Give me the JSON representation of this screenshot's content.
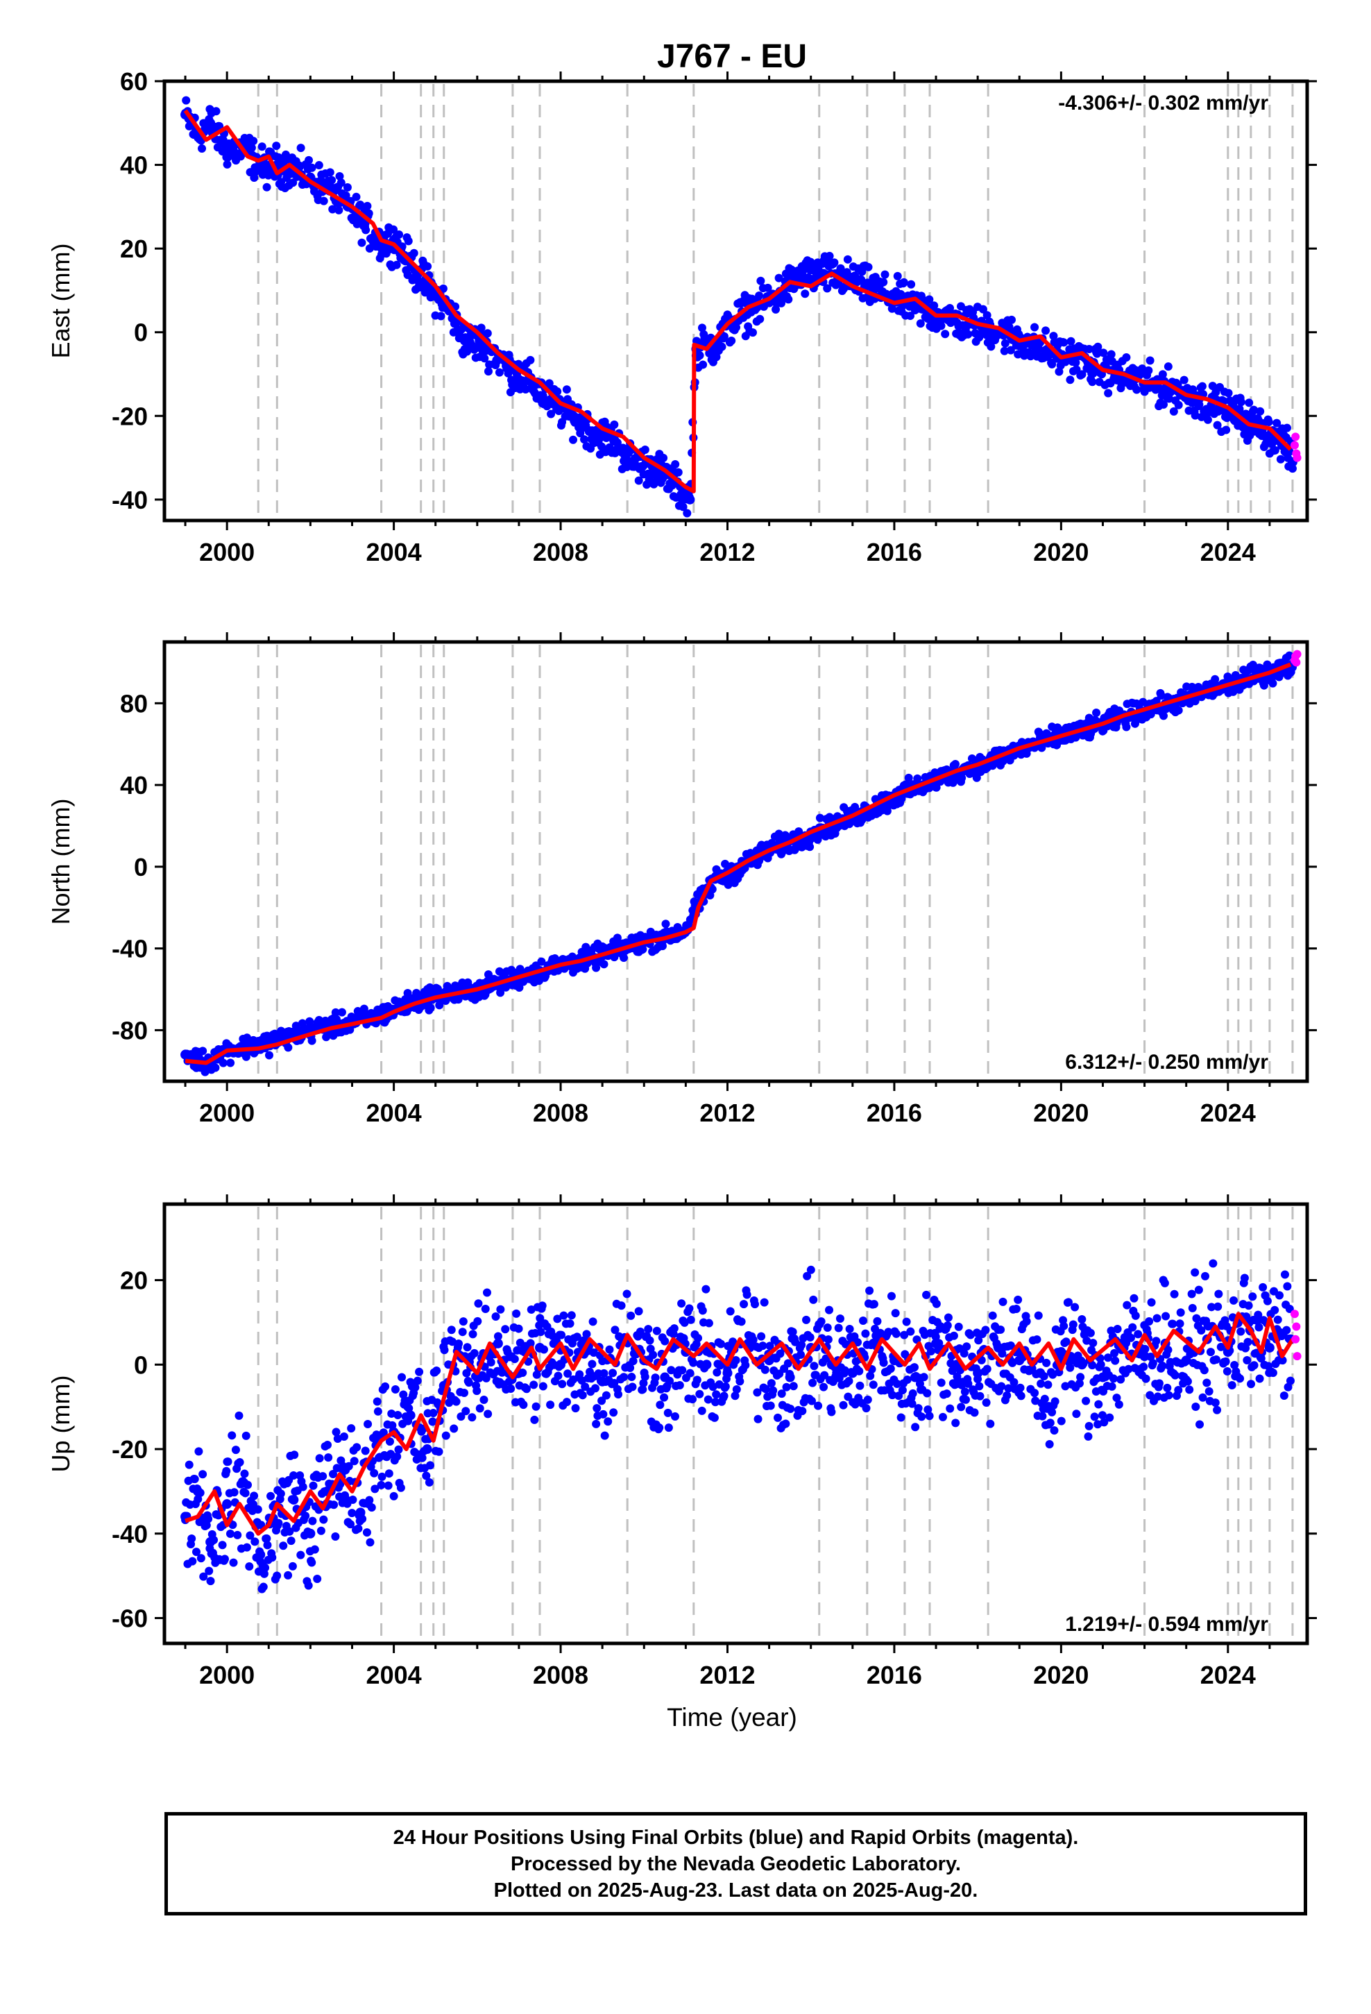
{
  "title": "J767 - EU",
  "xlabel": "Time (year)",
  "chart_data": [
    {
      "type": "scatter",
      "ylabel": "East (mm)",
      "rate_label": "-4.306+/- 0.302 mm/yr",
      "xlim": [
        1998.5,
        2025.9
      ],
      "ylim": [
        -45,
        60
      ],
      "yticks": [
        -40,
        -20,
        0,
        20,
        40,
        60
      ],
      "xticks": [
        2000,
        2004,
        2008,
        2012,
        2016,
        2020,
        2024
      ],
      "offset_years": [
        2000.75,
        2001.2,
        2003.7,
        2004.65,
        2004.95,
        2005.2,
        2006.85,
        2007.5,
        2009.6,
        2011.19,
        2014.2,
        2015.35,
        2016.25,
        2016.85,
        2018.25,
        2022.0,
        2024.0,
        2024.25,
        2024.55,
        2025.0,
        2025.55
      ],
      "series": [
        {
          "name": "Final Orbits",
          "color": "#0000ff",
          "x": [
            1999.0,
            1999.3,
            1999.6,
            2000.0,
            2000.5,
            2000.9,
            2001.2,
            2001.6,
            2002.0,
            2002.5,
            2002.9,
            2003.3,
            2003.7,
            2004.0,
            2004.5,
            2004.9,
            2005.3,
            2005.7,
            2006.2,
            2006.8,
            2007.3,
            2007.8,
            2008.3,
            2008.8,
            2009.3,
            2009.7,
            2010.2,
            2010.7,
            2011.1,
            2011.25,
            2011.7,
            2012.2,
            2012.7,
            2013.2,
            2013.7,
            2014.3,
            2014.8,
            2015.3,
            2015.8,
            2016.3,
            2016.8,
            2017.3,
            2017.8,
            2018.3,
            2018.8,
            2019.3,
            2019.8,
            2020.3,
            2020.8,
            2021.3,
            2021.8,
            2022.3,
            2022.8,
            2023.3,
            2023.8,
            2024.3,
            2024.8,
            2025.3,
            2025.55
          ],
          "y": [
            52,
            47,
            50,
            44,
            43,
            39,
            40,
            39,
            37,
            34,
            30,
            26,
            21,
            22,
            15,
            10,
            6,
            -2,
            -3,
            -9,
            -12,
            -17,
            -20,
            -24,
            -26,
            -31,
            -32,
            -36,
            -40,
            -4,
            -3,
            3,
            6,
            9,
            13,
            14,
            13,
            11,
            9,
            7,
            5,
            3,
            2,
            1,
            -1,
            -3,
            -5,
            -6,
            -8,
            -10,
            -11,
            -13,
            -14,
            -16,
            -18,
            -20,
            -23,
            -26,
            -31
          ]
        },
        {
          "name": "Rapid Orbits",
          "color": "#ff00ff",
          "x": [
            2025.6,
            2025.62,
            2025.64,
            2025.66
          ],
          "y": [
            -27,
            -25,
            -29,
            -30
          ]
        }
      ],
      "model": {
        "name": "Model",
        "color": "#ff0000",
        "x": [
          1999.0,
          1999.5,
          2000.0,
          2000.5,
          2000.75,
          2001.0,
          2001.2,
          2001.5,
          2002.0,
          2002.5,
          2003.0,
          2003.5,
          2003.7,
          2004.0,
          2004.5,
          2005.0,
          2005.5,
          2006.0,
          2006.5,
          2007.0,
          2007.5,
          2008.0,
          2008.5,
          2009.0,
          2009.5,
          2010.0,
          2010.5,
          2011.0,
          2011.19,
          2011.2,
          2011.5,
          2012.0,
          2012.5,
          2013.0,
          2013.5,
          2014.0,
          2014.5,
          2015.0,
          2015.5,
          2016.0,
          2016.5,
          2017.0,
          2017.5,
          2018.0,
          2018.5,
          2019.0,
          2019.5,
          2020.0,
          2020.5,
          2021.0,
          2021.5,
          2022.0,
          2022.5,
          2023.0,
          2023.5,
          2024.0,
          2024.5,
          2025.0,
          2025.5
        ],
        "y": [
          53,
          46,
          49,
          42,
          41,
          42,
          38,
          40,
          36,
          33,
          30,
          26,
          22,
          21,
          16,
          11,
          4,
          0,
          -5,
          -9,
          -12,
          -17,
          -19,
          -23,
          -25,
          -30,
          -33,
          -37,
          -38,
          -3,
          -4,
          2,
          6,
          8,
          12,
          11,
          14,
          11,
          9,
          7,
          8,
          4,
          4,
          2,
          1,
          -2,
          -1,
          -6,
          -5,
          -9,
          -10,
          -12,
          -12,
          -15,
          -16,
          -18,
          -22,
          -23,
          -28
        ]
      }
    },
    {
      "type": "scatter",
      "ylabel": "North (mm)",
      "rate_label": "6.312+/- 0.250 mm/yr",
      "xlim": [
        1998.5,
        2025.9
      ],
      "ylim": [
        -105,
        110
      ],
      "yticks": [
        -80,
        -40,
        0,
        40,
        80
      ],
      "xticks": [
        2000,
        2004,
        2008,
        2012,
        2016,
        2020,
        2024
      ],
      "offset_years": [
        2000.75,
        2001.2,
        2003.7,
        2004.65,
        2004.95,
        2005.2,
        2006.85,
        2007.5,
        2009.6,
        2011.19,
        2014.2,
        2015.35,
        2016.25,
        2016.85,
        2018.25,
        2022.0,
        2024.0,
        2024.25,
        2024.55,
        2025.0,
        2025.55
      ],
      "series": [
        {
          "name": "Final Orbits",
          "color": "#0000ff",
          "x": [
            1999.0,
            1999.5,
            2000.0,
            2000.5,
            2001.0,
            2001.5,
            2002.0,
            2002.5,
            2003.0,
            2003.5,
            2004.0,
            2004.5,
            2005.0,
            2005.5,
            2006.0,
            2006.5,
            2007.0,
            2007.5,
            2008.0,
            2008.5,
            2009.0,
            2009.5,
            2010.0,
            2010.5,
            2011.0,
            2011.25,
            2011.7,
            2012.2,
            2012.7,
            2013.2,
            2013.7,
            2014.2,
            2014.7,
            2015.2,
            2015.7,
            2016.2,
            2016.7,
            2017.2,
            2017.7,
            2018.2,
            2018.7,
            2019.2,
            2019.7,
            2020.2,
            2020.7,
            2021.2,
            2021.7,
            2022.2,
            2022.7,
            2023.2,
            2023.7,
            2024.2,
            2024.7,
            2025.2,
            2025.55
          ],
          "y": [
            -92,
            -96,
            -90,
            -88,
            -86,
            -83,
            -80,
            -78,
            -76,
            -74,
            -70,
            -66,
            -63,
            -62,
            -60,
            -57,
            -54,
            -51,
            -48,
            -46,
            -43,
            -40,
            -37,
            -34,
            -31,
            -20,
            -6,
            -2,
            5,
            10,
            13,
            18,
            22,
            26,
            31,
            36,
            40,
            44,
            48,
            51,
            55,
            59,
            62,
            65,
            68,
            71,
            75,
            78,
            80,
            84,
            87,
            90,
            94,
            96,
            99
          ]
        },
        {
          "name": "Rapid Orbits",
          "color": "#ff00ff",
          "x": [
            2025.6,
            2025.62,
            2025.64,
            2025.66
          ],
          "y": [
            101,
            103,
            100,
            104
          ]
        }
      ],
      "model": {
        "name": "Model",
        "color": "#ff0000",
        "x": [
          1999.0,
          1999.5,
          2000.0,
          2000.75,
          2001.2,
          2002.0,
          2002.5,
          2003.0,
          2003.7,
          2004.0,
          2004.5,
          2005.0,
          2005.5,
          2006.0,
          2006.5,
          2007.0,
          2007.5,
          2008.0,
          2008.5,
          2009.0,
          2009.5,
          2010.0,
          2010.5,
          2011.0,
          2011.19,
          2011.3,
          2011.6,
          2012.0,
          2012.5,
          2013.0,
          2013.5,
          2014.0,
          2014.5,
          2015.0,
          2015.5,
          2016.0,
          2016.5,
          2017.0,
          2017.5,
          2018.0,
          2018.5,
          2019.0,
          2019.5,
          2020.0,
          2020.5,
          2021.0,
          2021.5,
          2022.0,
          2022.5,
          2023.0,
          2023.5,
          2024.0,
          2024.5,
          2025.0,
          2025.5
        ],
        "y": [
          -95,
          -96,
          -90,
          -89,
          -87,
          -82,
          -79,
          -77,
          -74,
          -71,
          -67,
          -64,
          -62,
          -60,
          -57,
          -54,
          -51,
          -48,
          -46,
          -43,
          -40,
          -37,
          -35,
          -32,
          -30,
          -20,
          -7,
          -3,
          3,
          8,
          12,
          17,
          21,
          25,
          30,
          35,
          39,
          43,
          47,
          50,
          54,
          58,
          61,
          64,
          67,
          70,
          74,
          77,
          80,
          83,
          86,
          89,
          92,
          95,
          99
        ]
      }
    },
    {
      "type": "scatter",
      "ylabel": "Up (mm)",
      "rate_label": "1.219+/- 0.594 mm/yr",
      "xlim": [
        1998.5,
        2025.9
      ],
      "ylim": [
        -66,
        38
      ],
      "yticks": [
        -60,
        -40,
        -20,
        0,
        20
      ],
      "xticks": [
        2000,
        2004,
        2008,
        2012,
        2016,
        2020,
        2024
      ],
      "offset_years": [
        2000.75,
        2001.2,
        2003.7,
        2004.65,
        2004.95,
        2005.2,
        2006.85,
        2007.5,
        2009.6,
        2011.19,
        2014.2,
        2015.35,
        2016.25,
        2016.85,
        2018.25,
        2022.0,
        2024.0,
        2024.25,
        2024.55,
        2025.0,
        2025.55
      ],
      "series": [
        {
          "name": "Final Orbits",
          "color": "#0000ff",
          "x": [
            1999.0,
            1999.3,
            1999.6,
            2000.0,
            2000.4,
            2000.8,
            2001.2,
            2001.6,
            2002.0,
            2002.4,
            2002.8,
            2003.2,
            2003.6,
            2004.0,
            2004.4,
            2004.8,
            2005.2,
            2005.6,
            2006.0,
            2006.5,
            2007.0,
            2007.5,
            2008.0,
            2008.5,
            2009.0,
            2009.5,
            2010.0,
            2010.5,
            2011.0,
            2011.5,
            2012.0,
            2012.5,
            2013.0,
            2013.5,
            2014.0,
            2014.5,
            2015.0,
            2015.5,
            2016.0,
            2016.5,
            2017.0,
            2017.5,
            2018.0,
            2018.5,
            2019.0,
            2019.5,
            2019.7,
            2020.0,
            2020.5,
            2021.0,
            2021.5,
            2022.0,
            2022.5,
            2023.0,
            2023.5,
            2024.0,
            2024.5,
            2025.0,
            2025.5
          ],
          "y": [
            -36,
            -30,
            -42,
            -33,
            -28,
            -45,
            -38,
            -32,
            -40,
            -30,
            -25,
            -35,
            -18,
            -16,
            -12,
            -20,
            -5,
            2,
            -3,
            5,
            -2,
            4,
            0,
            3,
            -4,
            6,
            1,
            -3,
            3,
            0,
            -2,
            5,
            1,
            -3,
            4,
            0,
            -2,
            5,
            1,
            -3,
            5,
            0,
            -2,
            4,
            1,
            -2,
            -10,
            3,
            0,
            -3,
            4,
            2,
            5,
            1,
            6,
            3,
            10,
            4,
            6
          ]
        },
        {
          "name": "Rapid Orbits",
          "color": "#ff00ff",
          "x": [
            2025.6,
            2025.62,
            2025.64,
            2025.66
          ],
          "y": [
            12,
            6,
            9,
            2
          ]
        }
      ],
      "model": {
        "name": "Model",
        "color": "#ff0000",
        "x": [
          1999.0,
          1999.3,
          1999.7,
          2000.0,
          2000.3,
          2000.75,
          2001.0,
          2001.2,
          2001.6,
          2002.0,
          2002.3,
          2002.7,
          2003.0,
          2003.3,
          2003.7,
          2004.0,
          2004.3,
          2004.65,
          2004.95,
          2005.2,
          2005.5,
          2006.0,
          2006.3,
          2006.85,
          2007.3,
          2007.5,
          2008.0,
          2008.3,
          2008.7,
          2009.3,
          2009.6,
          2010.0,
          2010.3,
          2010.7,
          2011.19,
          2011.5,
          2012.0,
          2012.3,
          2012.7,
          2013.3,
          2013.7,
          2014.2,
          2014.6,
          2015.0,
          2015.35,
          2015.7,
          2016.25,
          2016.6,
          2016.85,
          2017.3,
          2017.7,
          2018.25,
          2018.6,
          2019.0,
          2019.3,
          2019.7,
          2020.0,
          2020.3,
          2020.7,
          2021.3,
          2021.7,
          2022.0,
          2022.3,
          2022.7,
          2023.3,
          2023.7,
          2024.0,
          2024.25,
          2024.55,
          2024.8,
          2025.0,
          2025.3,
          2025.55
        ],
        "y": [
          -37,
          -36,
          -30,
          -38,
          -33,
          -40,
          -38,
          -33,
          -37,
          -30,
          -34,
          -26,
          -30,
          -24,
          -18,
          -16,
          -20,
          -12,
          -18,
          -8,
          3,
          -2,
          5,
          -3,
          4,
          -1,
          5,
          -1,
          6,
          0,
          7,
          1,
          -1,
          6,
          2,
          5,
          0,
          6,
          0,
          5,
          -1,
          6,
          0,
          5,
          -1,
          6,
          0,
          5,
          -1,
          5,
          -1,
          4,
          0,
          5,
          0,
          5,
          -1,
          6,
          1,
          6,
          1,
          7,
          2,
          8,
          3,
          9,
          4,
          12,
          8,
          3,
          11,
          2,
          6
        ]
      }
    }
  ],
  "caption": {
    "line1": "24 Hour Positions Using Final Orbits (blue) and Rapid Orbits (magenta).",
    "line2": "Processed by the Nevada Geodetic Laboratory.",
    "line3": "Plotted on 2025-Aug-23. Last data on 2025-Aug-20."
  }
}
